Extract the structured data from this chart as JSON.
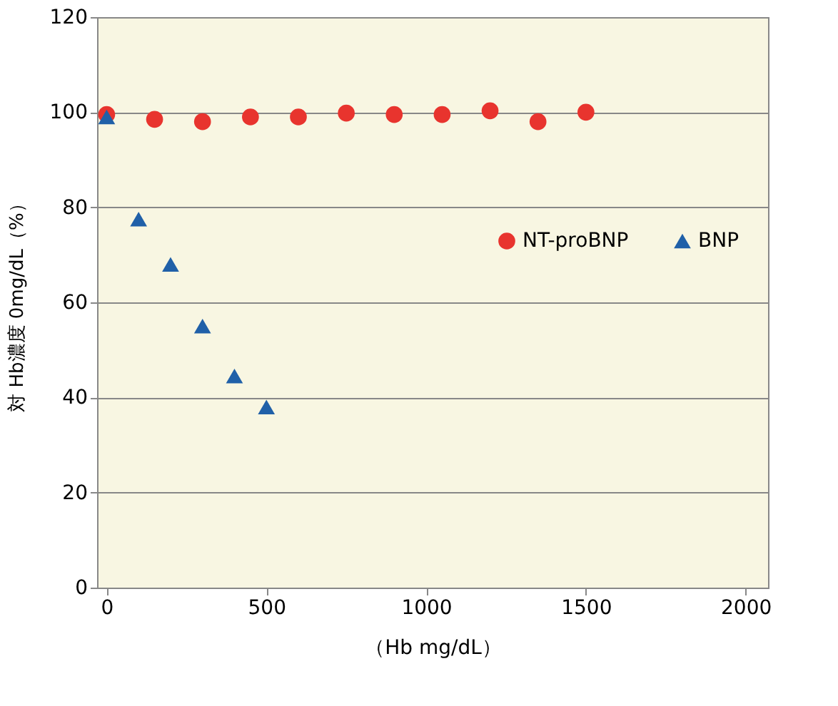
{
  "chart_data": {
    "type": "scatter",
    "xlabel": "（Hb mg/dL）",
    "ylabel": "対 Hb濃度 0mg/dL（%）",
    "xlim": [
      -30,
      2070
    ],
    "xticks": [
      0,
      500,
      1000,
      1500,
      2000
    ],
    "ylim": [
      0,
      120
    ],
    "yticks": [
      0,
      20,
      40,
      60,
      80,
      100,
      120
    ],
    "grid": "y",
    "legend": "right",
    "series": [
      {
        "name": "NT-proBNP",
        "color": "#e8342e",
        "marker": "circle",
        "x": [
          0,
          150,
          300,
          450,
          600,
          750,
          900,
          1050,
          1200,
          1350,
          1500
        ],
        "values": [
          99.5,
          98.5,
          98,
          99,
          99,
          99.8,
          99.5,
          99.5,
          100.3,
          98,
          100
        ]
      },
      {
        "name": "BNP",
        "color": "#2060a8",
        "marker": "triangle",
        "x": [
          0,
          100,
          200,
          300,
          400,
          500
        ],
        "values": [
          99,
          77.5,
          68,
          55,
          44.5,
          38
        ]
      }
    ]
  }
}
